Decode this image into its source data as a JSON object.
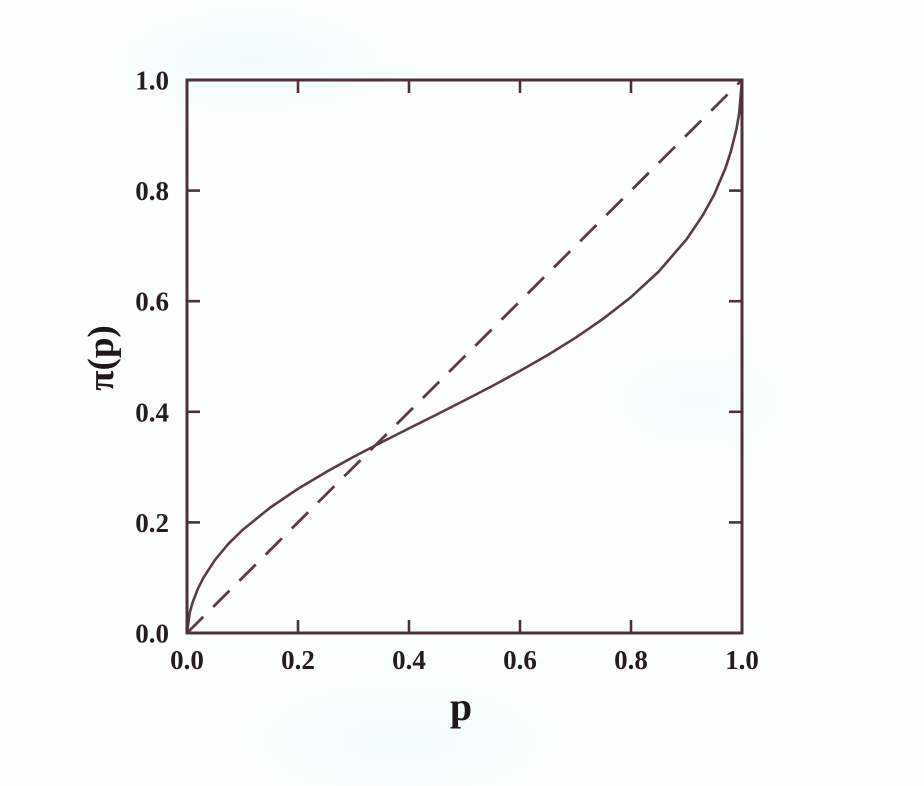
{
  "figure": {
    "background": "#fdfffe",
    "frame_color": "#4b3238",
    "line_color": "#573c41",
    "text_color": "#241c1e"
  },
  "chart_data": {
    "type": "line",
    "title": "",
    "xlabel": "p",
    "ylabel": "π(p)",
    "xlim": [
      0.0,
      1.0
    ],
    "ylim": [
      0.0,
      1.0
    ],
    "xticks": [
      0.0,
      0.2,
      0.4,
      0.6,
      0.8,
      1.0
    ],
    "yticks": [
      0.0,
      0.2,
      0.4,
      0.6,
      0.8,
      1.0
    ],
    "xtick_labels": [
      "0.0",
      "0.2",
      "0.4",
      "0.6",
      "0.8",
      "1.0"
    ],
    "ytick_labels": [
      "0.0",
      "0.2",
      "0.4",
      "0.6",
      "0.8",
      "1.0"
    ],
    "grid": false,
    "legend": null,
    "frame": "box-with-inward-ticks",
    "annotations": [
      "curve crosses identity line near p = 0.33"
    ],
    "series": [
      {
        "name": "identity-line",
        "style": "dashed",
        "x": [
          0.0,
          1.0
        ],
        "y": [
          0.0,
          1.0
        ]
      },
      {
        "name": "probability-weighting-function",
        "style": "solid",
        "x": [
          0.0,
          0.005,
          0.01,
          0.02,
          0.03,
          0.05,
          0.075,
          0.1,
          0.15,
          0.2,
          0.25,
          0.3,
          0.35,
          0.4,
          0.45,
          0.5,
          0.55,
          0.6,
          0.65,
          0.7,
          0.75,
          0.8,
          0.85,
          0.9,
          0.93,
          0.95,
          0.97,
          0.98,
          0.99,
          0.995,
          1.0
        ],
        "y": [
          0.0,
          0.0372,
          0.0552,
          0.0811,
          0.1008,
          0.1316,
          0.1616,
          0.1863,
          0.2269,
          0.2608,
          0.2907,
          0.3184,
          0.3446,
          0.37,
          0.3952,
          0.4206,
          0.4467,
          0.4739,
          0.5027,
          0.5338,
          0.5683,
          0.6075,
          0.6537,
          0.7117,
          0.7563,
          0.7932,
          0.8404,
          0.8711,
          0.9116,
          0.9402,
          1.0
        ]
      }
    ]
  }
}
